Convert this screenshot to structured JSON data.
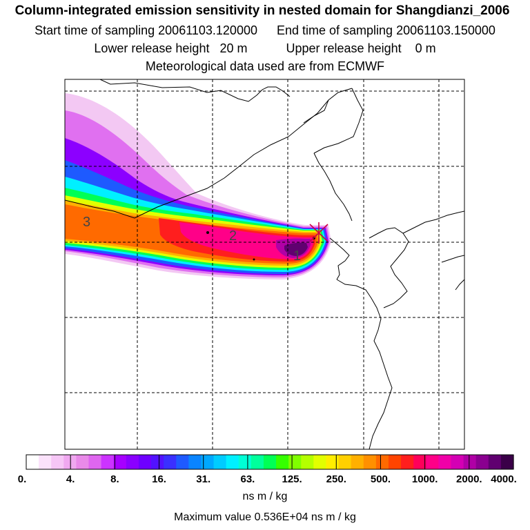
{
  "title": {
    "line1": "Column-integrated emission sensitivity in nested domain for Shangdianzi_2006",
    "start_label": "Start time of sampling",
    "start_value": "20061103.120000",
    "end_label": "End time of sampling",
    "end_value": "20061103.150000",
    "lower_label": "Lower release height",
    "lower_value": "20 m",
    "upper_label": "Upper release height",
    "upper_value": "0 m",
    "line4": "Meteorological data used are from ECMWF"
  },
  "map": {
    "plume_labels": [
      "3",
      "2",
      "1"
    ],
    "colors": {
      "coast": "#000000",
      "grid": "#000000",
      "receptor": "#cc0044"
    }
  },
  "legend": {
    "colors": [
      "#ffffff",
      "#fbe2fb",
      "#f6c6f6",
      "#f0a8f0",
      "#e98ae9",
      "#df66ef",
      "#cc33ff",
      "#a600ff",
      "#8a00ff",
      "#6e00ff",
      "#5212ff",
      "#3a30ff",
      "#1e5aff",
      "#0a84ff",
      "#00a8ff",
      "#00ccff",
      "#00f0ff",
      "#00ffd6",
      "#00ff9c",
      "#00ff55",
      "#35ff00",
      "#80ff00",
      "#b4ff00",
      "#e2ff00",
      "#ffee00",
      "#ffd000",
      "#ffb000",
      "#ff9000",
      "#ff6a00",
      "#ff4400",
      "#ff1e1e",
      "#ff005a",
      "#ff0088",
      "#f000a8",
      "#d400b4",
      "#b000a6",
      "#8a0090",
      "#600070",
      "#3a0048"
    ],
    "tick_labels": [
      "0.",
      "4.",
      "8.",
      "16.",
      "31.",
      "63.",
      "125.",
      "250.",
      "500.",
      "1000.",
      "2000.",
      "4000."
    ],
    "unit": "ns m / kg",
    "max_value": "Maximum value  0.536E+04 ns m / kg"
  },
  "plume_levels": [
    {
      "name": "light-magenta",
      "color": "#f3c8f3"
    },
    {
      "name": "magenta",
      "color": "#e070f0"
    },
    {
      "name": "violet",
      "color": "#8c00ff"
    },
    {
      "name": "blue",
      "color": "#1e5aff"
    },
    {
      "name": "cyan",
      "color": "#00f0ff"
    },
    {
      "name": "green",
      "color": "#00ff55"
    },
    {
      "name": "yellow",
      "color": "#e2ff00"
    },
    {
      "name": "orange",
      "color": "#ffb000"
    },
    {
      "name": "dark-orange",
      "color": "#ff6a00"
    },
    {
      "name": "red",
      "color": "#ff1e1e"
    },
    {
      "name": "pink",
      "color": "#ff0088"
    },
    {
      "name": "purple",
      "color": "#b000a6"
    },
    {
      "name": "dark-purple",
      "color": "#600070"
    }
  ]
}
